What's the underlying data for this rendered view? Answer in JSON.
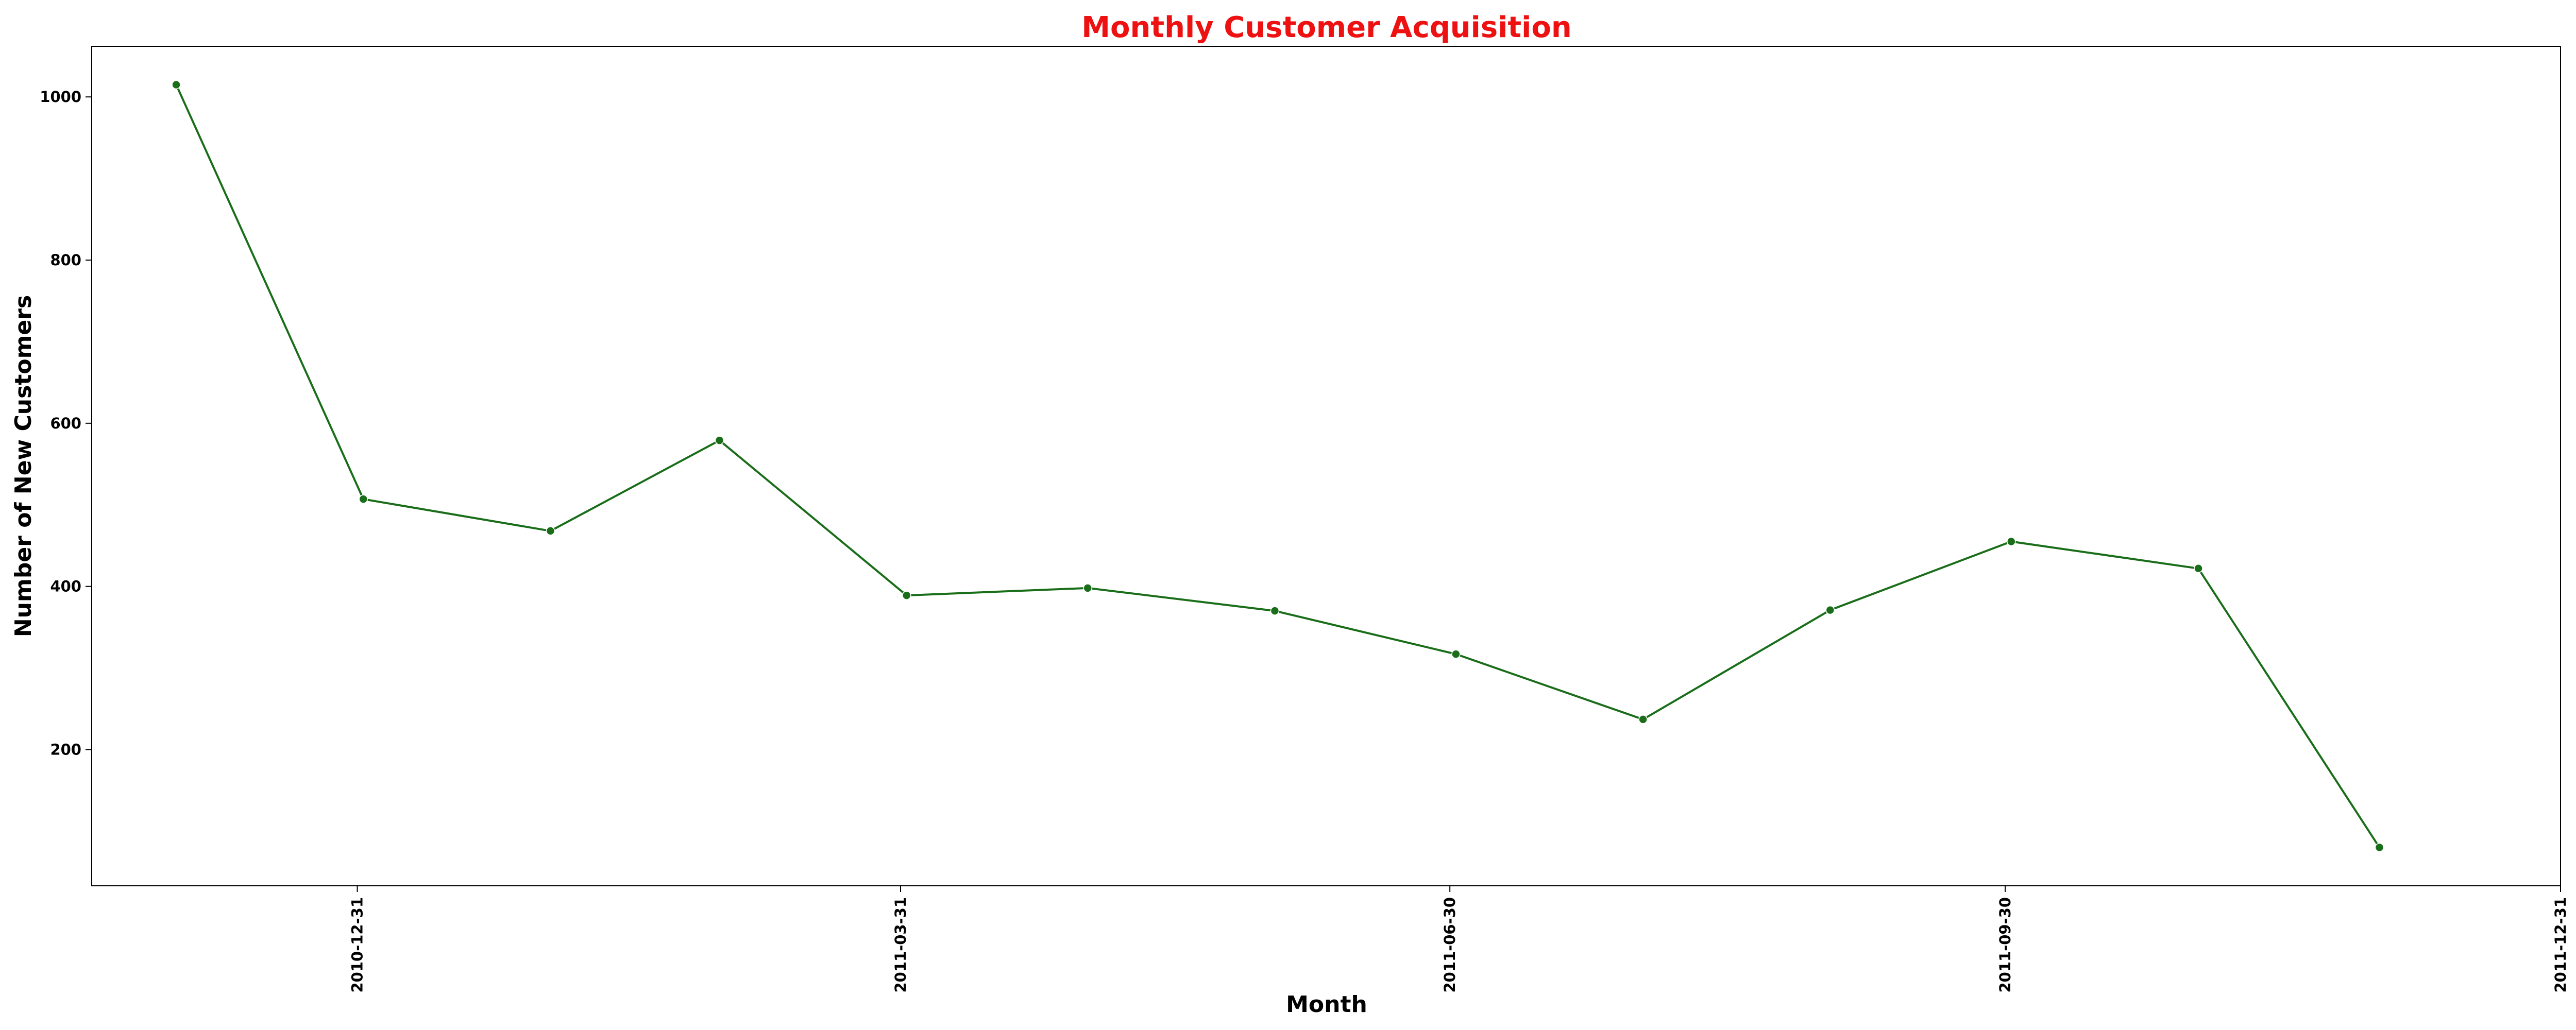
{
  "chart_data": {
    "type": "line",
    "title": "Monthly Customer Acquisition",
    "xlabel": "Month",
    "ylabel": "Number of New Customers",
    "x": [
      "2010-12-01",
      "2011-01-01",
      "2011-02-01",
      "2011-03-01",
      "2011-04-01",
      "2011-05-01",
      "2011-06-01",
      "2011-07-01",
      "2011-08-01",
      "2011-09-01",
      "2011-10-01",
      "2011-11-01",
      "2011-12-01"
    ],
    "series": [
      {
        "values": [
          1015,
          507,
          468,
          579,
          389,
          398,
          370,
          317,
          237,
          371,
          455,
          422,
          80
        ]
      }
    ],
    "x_tick_labels": [
      "2010-12-31",
      "2011-03-31",
      "2011-06-30",
      "2011-09-30",
      "2011-12-31"
    ],
    "y_ticks": [
      200,
      400,
      600,
      800,
      1000
    ],
    "ylim": [
      33,
      1062
    ],
    "xlim": [
      "2010-11-17",
      "2011-12-31"
    ],
    "grid": false,
    "colors": {
      "title": "#ee1111",
      "line": "#1a6e1a",
      "marker": "#1a6e1a"
    }
  }
}
